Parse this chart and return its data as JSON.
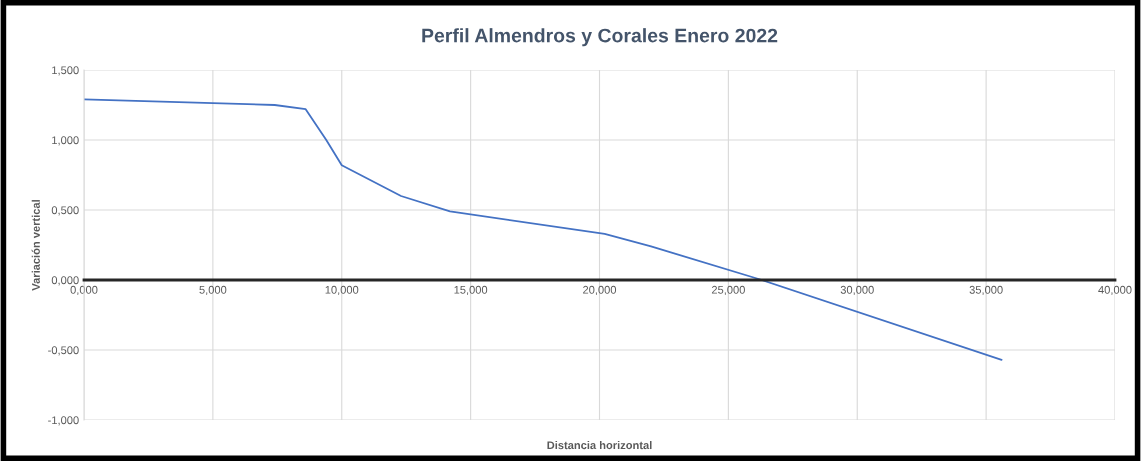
{
  "chart_data": {
    "type": "line",
    "title": "Perfil Almendros y Corales Enero 2022",
    "xlabel": "Distancia horizontal",
    "ylabel": "Variación vertical",
    "x": [
      0,
      7.4,
      8.6,
      9.4,
      10.0,
      12.3,
      14.2,
      20.2,
      22.0,
      26.3,
      35.6
    ],
    "series": [
      {
        "color": "#4472c4",
        "values": [
          1.29,
          1.25,
          1.22,
          1.0,
          0.82,
          0.6,
          0.49,
          0.33,
          0.24,
          0.0,
          -0.57
        ]
      }
    ],
    "xlim": [
      0,
      40
    ],
    "ylim": [
      -1,
      1.5
    ],
    "xticks": [
      {
        "value": 0,
        "label": "0,000"
      },
      {
        "value": 5,
        "label": "5,000"
      },
      {
        "value": 10,
        "label": "10,000"
      },
      {
        "value": 15,
        "label": "15,000"
      },
      {
        "value": 20,
        "label": "20,000"
      },
      {
        "value": 25,
        "label": "25,000"
      },
      {
        "value": 30,
        "label": "30,000"
      },
      {
        "value": 35,
        "label": "35,000"
      },
      {
        "value": 40,
        "label": "40,000"
      }
    ],
    "yticks": [
      {
        "value": -1,
        "label": "-1,000"
      },
      {
        "value": -0.5,
        "label": "-0,500"
      },
      {
        "value": 0,
        "label": "0,000"
      },
      {
        "value": 0.5,
        "label": "0,500"
      },
      {
        "value": 1,
        "label": "1,000"
      },
      {
        "value": 1.5,
        "label": "1,500"
      }
    ],
    "grid": true,
    "marker": "none",
    "line_style": "solid",
    "legend": false
  }
}
